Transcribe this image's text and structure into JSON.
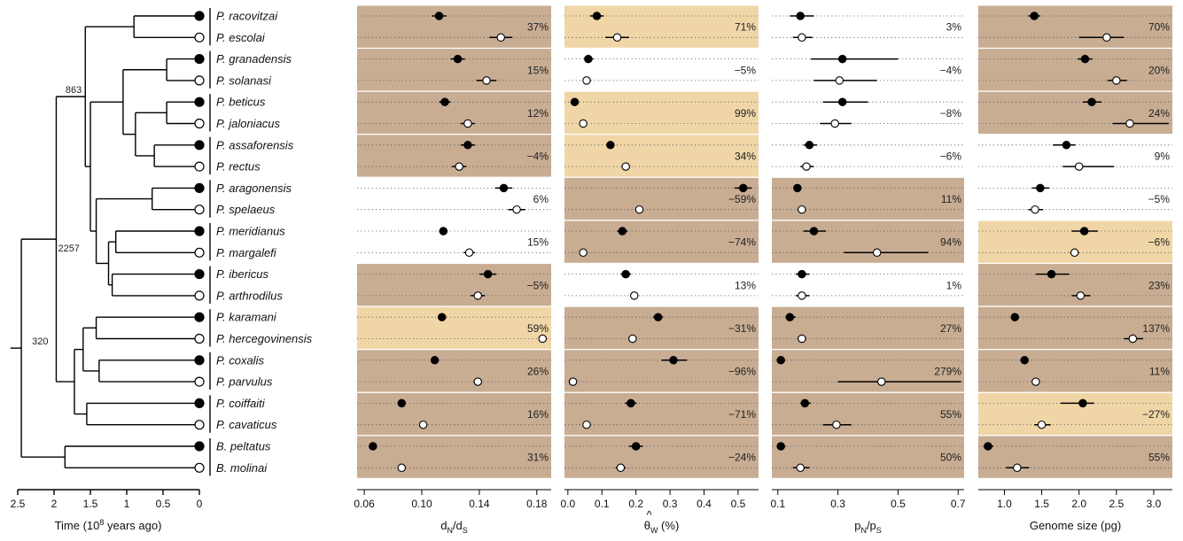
{
  "colors": {
    "dark_band": "#c8ad93",
    "light_band": "#f0d6a7",
    "tree": "#000000"
  },
  "species": [
    "P. racovitzai",
    "P. escolai",
    "P. granadensis",
    "P. solanasi",
    "P. beticus",
    "P. jaloniacus",
    "P. assaforensis",
    "P. rectus",
    "P. aragonensis",
    "P. spelaeus",
    "P. meridianus",
    "P. margalefi",
    "P. ibericus",
    "P. arthrodilus",
    "P. karamani",
    "P. hercegovinensis",
    "P. coxalis",
    "P. parvulus",
    "P. coiffaiti",
    "P. cavaticus",
    "B. peltatus",
    "B. molinai"
  ],
  "tree": {
    "axis": {
      "label_main": "Time (10",
      "label_sup": "8",
      "label_end": " years ago)",
      "ticks": [
        "2.5",
        "2",
        "1.5",
        "1",
        "0.5",
        "0"
      ],
      "tick_values": [
        2.5,
        2,
        1.5,
        1,
        0.5,
        0
      ]
    },
    "tip_fill": [
      "filled",
      "open",
      "filled",
      "open",
      "filled",
      "open",
      "filled",
      "open",
      "filled",
      "open",
      "filled",
      "open",
      "filled",
      "open",
      "filled",
      "open",
      "filled",
      "open",
      "filled",
      "open",
      "filled",
      "open"
    ],
    "node_labels": [
      {
        "text": "863"
      },
      {
        "text": "2257"
      },
      {
        "text": "320"
      }
    ]
  },
  "chart_data": [
    {
      "type": "scatter",
      "name": "dN_dS",
      "xlabel_main": "d",
      "xlabel_sub1": "N",
      "xlabel_mid": "/d",
      "xlabel_sub2": "S",
      "xlim": [
        0.055,
        0.19
      ],
      "ticks": [
        "0.06",
        "0.10",
        "0.14",
        "0.18"
      ],
      "tick_values": [
        0.06,
        0.1,
        0.14,
        0.18
      ],
      "bands": [
        "dark",
        "dark",
        "dark",
        "dark",
        "none",
        "none",
        "dark",
        "light",
        "dark",
        "dark",
        "dark"
      ],
      "percents": [
        "37%",
        "15%",
        "12%",
        "−4%",
        "6%",
        "15%",
        "−5%",
        "59%",
        "26%",
        "16%",
        "31%"
      ],
      "points": [
        {
          "x": 0.112,
          "lo": 0.107,
          "hi": 0.117
        },
        {
          "x": 0.155,
          "lo": 0.147,
          "hi": 0.163
        },
        {
          "x": 0.125,
          "lo": 0.12,
          "hi": 0.13
        },
        {
          "x": 0.145,
          "lo": 0.138,
          "hi": 0.152
        },
        {
          "x": 0.116,
          "lo": 0.112,
          "hi": 0.12
        },
        {
          "x": 0.132,
          "lo": 0.127,
          "hi": 0.137
        },
        {
          "x": 0.132,
          "lo": 0.127,
          "hi": 0.137
        },
        {
          "x": 0.126,
          "lo": 0.121,
          "hi": 0.131
        },
        {
          "x": 0.157,
          "lo": 0.151,
          "hi": 0.163
        },
        {
          "x": 0.166,
          "lo": 0.16,
          "hi": 0.172
        },
        {
          "x": 0.115,
          "lo": 0.112,
          "hi": 0.118
        },
        {
          "x": 0.133,
          "lo": 0.129,
          "hi": 0.137
        },
        {
          "x": 0.146,
          "lo": 0.14,
          "hi": 0.152
        },
        {
          "x": 0.139,
          "lo": 0.134,
          "hi": 0.144
        },
        {
          "x": 0.114,
          "lo": 0.112,
          "hi": 0.116
        },
        {
          "x": 0.184,
          "lo": 0.182,
          "hi": 0.186
        },
        {
          "x": 0.109,
          "lo": 0.107,
          "hi": 0.111
        },
        {
          "x": 0.139,
          "lo": 0.137,
          "hi": 0.141
        },
        {
          "x": 0.086,
          "lo": 0.084,
          "hi": 0.088
        },
        {
          "x": 0.101,
          "lo": 0.099,
          "hi": 0.103
        },
        {
          "x": 0.066,
          "lo": 0.064,
          "hi": 0.068
        },
        {
          "x": 0.086,
          "lo": 0.084,
          "hi": 0.088
        }
      ]
    },
    {
      "type": "scatter",
      "name": "theta_W",
      "xlabel_main": "θ",
      "xlabel_hat": "^",
      "xlabel_sub1": "W",
      "xlabel_end": " (%)",
      "xlim": [
        -0.01,
        0.56
      ],
      "ticks": [
        "0.0",
        "0.1",
        "0.2",
        "0.3",
        "0.4",
        "0.5"
      ],
      "tick_values": [
        0,
        0.1,
        0.2,
        0.3,
        0.4,
        0.5
      ],
      "bands": [
        "light",
        "none",
        "light",
        "light",
        "dark",
        "dark",
        "none",
        "dark",
        "dark",
        "dark",
        "dark"
      ],
      "percents": [
        "71%",
        "−5%",
        "99%",
        "34%",
        "−59%",
        "−74%",
        "13%",
        "−31%",
        "−96%",
        "−71%",
        "−24%"
      ],
      "points": [
        {
          "x": 0.085,
          "lo": 0.065,
          "hi": 0.105
        },
        {
          "x": 0.145,
          "lo": 0.11,
          "hi": 0.18
        },
        {
          "x": 0.06,
          "lo": 0.048,
          "hi": 0.075
        },
        {
          "x": 0.055,
          "lo": 0.045,
          "hi": 0.068
        },
        {
          "x": 0.02,
          "lo": 0.014,
          "hi": 0.026
        },
        {
          "x": 0.045,
          "lo": 0.04,
          "hi": 0.05
        },
        {
          "x": 0.125,
          "lo": 0.114,
          "hi": 0.136
        },
        {
          "x": 0.17,
          "lo": 0.158,
          "hi": 0.182
        },
        {
          "x": 0.515,
          "lo": 0.49,
          "hi": 0.54
        },
        {
          "x": 0.21,
          "lo": 0.198,
          "hi": 0.222
        },
        {
          "x": 0.16,
          "lo": 0.145,
          "hi": 0.175
        },
        {
          "x": 0.045,
          "lo": 0.04,
          "hi": 0.05
        },
        {
          "x": 0.17,
          "lo": 0.155,
          "hi": 0.185
        },
        {
          "x": 0.195,
          "lo": 0.183,
          "hi": 0.207
        },
        {
          "x": 0.265,
          "lo": 0.25,
          "hi": 0.28
        },
        {
          "x": 0.19,
          "lo": 0.178,
          "hi": 0.202
        },
        {
          "x": 0.31,
          "lo": 0.275,
          "hi": 0.35
        },
        {
          "x": 0.015,
          "lo": 0.011,
          "hi": 0.019
        },
        {
          "x": 0.185,
          "lo": 0.168,
          "hi": 0.202
        },
        {
          "x": 0.055,
          "lo": 0.05,
          "hi": 0.06
        },
        {
          "x": 0.2,
          "lo": 0.18,
          "hi": 0.22
        },
        {
          "x": 0.155,
          "lo": 0.14,
          "hi": 0.17
        }
      ]
    },
    {
      "type": "scatter",
      "name": "pN_pS",
      "xlabel_main": "p",
      "xlabel_sub1": "N",
      "xlabel_mid": "/p",
      "xlabel_sub2": "S",
      "xlim": [
        0.08,
        0.72
      ],
      "ticks": [
        "0.1",
        "0.3",
        "0.5",
        "0.7"
      ],
      "tick_values": [
        0.1,
        0.3,
        0.5,
        0.7
      ],
      "bands": [
        "none",
        "none",
        "none",
        "none",
        "dark",
        "dark",
        "none",
        "dark",
        "dark",
        "dark",
        "dark"
      ],
      "percents": [
        "3%",
        "−4%",
        "−8%",
        "−6%",
        "11%",
        "94%",
        "1%",
        "27%",
        "279%",
        "55%",
        "50%"
      ],
      "points": [
        {
          "x": 0.175,
          "lo": 0.14,
          "hi": 0.22
        },
        {
          "x": 0.18,
          "lo": 0.15,
          "hi": 0.215
        },
        {
          "x": 0.315,
          "lo": 0.21,
          "hi": 0.5
        },
        {
          "x": 0.305,
          "lo": 0.22,
          "hi": 0.43
        },
        {
          "x": 0.315,
          "lo": 0.25,
          "hi": 0.4
        },
        {
          "x": 0.29,
          "lo": 0.24,
          "hi": 0.345
        },
        {
          "x": 0.205,
          "lo": 0.185,
          "hi": 0.23
        },
        {
          "x": 0.195,
          "lo": 0.175,
          "hi": 0.22
        },
        {
          "x": 0.165,
          "lo": 0.155,
          "hi": 0.175
        },
        {
          "x": 0.18,
          "lo": 0.165,
          "hi": 0.195
        },
        {
          "x": 0.22,
          "lo": 0.185,
          "hi": 0.26
        },
        {
          "x": 0.43,
          "lo": 0.32,
          "hi": 0.6
        },
        {
          "x": 0.18,
          "lo": 0.16,
          "hi": 0.205
        },
        {
          "x": 0.18,
          "lo": 0.16,
          "hi": 0.205
        },
        {
          "x": 0.14,
          "lo": 0.125,
          "hi": 0.16
        },
        {
          "x": 0.18,
          "lo": 0.165,
          "hi": 0.195
        },
        {
          "x": 0.11,
          "lo": 0.1,
          "hi": 0.125
        },
        {
          "x": 0.445,
          "lo": 0.3,
          "hi": 0.71
        },
        {
          "x": 0.19,
          "lo": 0.175,
          "hi": 0.21
        },
        {
          "x": 0.295,
          "lo": 0.25,
          "hi": 0.345
        },
        {
          "x": 0.11,
          "lo": 0.1,
          "hi": 0.125
        },
        {
          "x": 0.175,
          "lo": 0.15,
          "hi": 0.205
        }
      ]
    },
    {
      "type": "scatter",
      "name": "genome_size",
      "xlabel_main": "Genome size (pg)",
      "xlim": [
        0.65,
        3.25
      ],
      "ticks": [
        "1.0",
        "1.5",
        "2.0",
        "2.5",
        "3.0"
      ],
      "tick_values": [
        1.0,
        1.5,
        2.0,
        2.5,
        3.0
      ],
      "bands": [
        "dark",
        "dark",
        "dark",
        "none",
        "none",
        "light",
        "dark",
        "dark",
        "dark",
        "light",
        "dark"
      ],
      "percents": [
        "70%",
        "20%",
        "24%",
        "9%",
        "−5%",
        "−6%",
        "23%",
        "137%",
        "11%",
        "−27%",
        "55%"
      ],
      "points": [
        {
          "x": 1.4,
          "lo": 1.32,
          "hi": 1.48
        },
        {
          "x": 2.37,
          "lo": 2.0,
          "hi": 2.6
        },
        {
          "x": 2.08,
          "lo": 1.98,
          "hi": 2.18
        },
        {
          "x": 2.5,
          "lo": 2.38,
          "hi": 2.64
        },
        {
          "x": 2.17,
          "lo": 2.05,
          "hi": 2.3
        },
        {
          "x": 2.68,
          "lo": 2.45,
          "hi": 3.2
        },
        {
          "x": 1.83,
          "lo": 1.65,
          "hi": 1.95
        },
        {
          "x": 2.0,
          "lo": 1.78,
          "hi": 2.47
        },
        {
          "x": 1.48,
          "lo": 1.37,
          "hi": 1.6
        },
        {
          "x": 1.41,
          "lo": 1.32,
          "hi": 1.52
        },
        {
          "x": 2.07,
          "lo": 1.9,
          "hi": 2.25
        },
        {
          "x": 1.94,
          "lo": 1.88,
          "hi": 2.0
        },
        {
          "x": 1.63,
          "lo": 1.42,
          "hi": 1.87
        },
        {
          "x": 2.02,
          "lo": 1.9,
          "hi": 2.15
        },
        {
          "x": 1.14,
          "lo": 1.1,
          "hi": 1.18
        },
        {
          "x": 2.72,
          "lo": 2.6,
          "hi": 2.86
        },
        {
          "x": 1.27,
          "lo": 1.22,
          "hi": 1.32
        },
        {
          "x": 1.42,
          "lo": 1.39,
          "hi": 1.45
        },
        {
          "x": 2.05,
          "lo": 1.75,
          "hi": 2.2
        },
        {
          "x": 1.5,
          "lo": 1.4,
          "hi": 1.62
        },
        {
          "x": 0.78,
          "lo": 0.72,
          "hi": 0.85
        },
        {
          "x": 1.17,
          "lo": 1.02,
          "hi": 1.33
        }
      ]
    }
  ]
}
